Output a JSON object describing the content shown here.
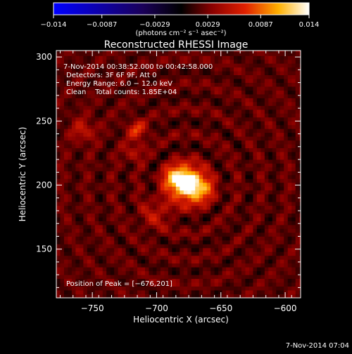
{
  "chart_data": {
    "type": "heatmap",
    "title": "Reconstructed RHESSI Image",
    "xlabel": "Heliocentric X (arcsec)",
    "ylabel": "Heliocentric Y (arcsec)",
    "xlim": [
      -778,
      -588
    ],
    "ylim": [
      112,
      305
    ],
    "xticks": [
      -750,
      -700,
      -650,
      -600
    ],
    "xtick_labels": [
      "−750",
      "−700",
      "−650",
      "−600"
    ],
    "yticks": [
      150,
      200,
      250,
      300
    ],
    "ytick_labels": [
      "150",
      "200",
      "250",
      "300"
    ],
    "colorbar": {
      "range": [
        -0.014,
        0.014
      ],
      "tick_values": [
        -0.014,
        -0.0087,
        -0.0029,
        0.0029,
        0.0087,
        0.014
      ],
      "tick_labels": [
        "−0.014",
        "−0.0087",
        "−0.0029",
        "0.0029",
        "0.0087",
        "0.014"
      ],
      "unit_label": "(photons cm⁻² s⁻¹ asec⁻²)"
    },
    "info_lines": [
      "7-Nov-2014 00:38:52.000 to 00:42:58.000",
      "Detectors: 3F 6F 9F, Att 0",
      "Energy Range: 6.0 − 12.0 keV",
      "Clean    Total counts: 1.85E+04"
    ],
    "peak_label": "Position of Peak = [−676,201]",
    "peak": [
      -676,
      201
    ],
    "sources": [
      {
        "x": -676,
        "y": 201,
        "sigma": 9,
        "amp": 0.014
      },
      {
        "x": -686,
        "y": 206,
        "sigma": 6,
        "amp": 0.006
      },
      {
        "x": -664,
        "y": 196,
        "sigma": 7,
        "amp": 0.004
      },
      {
        "x": -715,
        "y": 243,
        "sigma": 5,
        "amp": 0.005
      },
      {
        "x": -757,
        "y": 243,
        "sigma": 6,
        "amp": 0.0035
      },
      {
        "x": -718,
        "y": 226,
        "sigma": 5,
        "amp": 0.003
      },
      {
        "x": -700,
        "y": 178,
        "sigma": 8,
        "amp": 0.003
      }
    ],
    "background_level": 0.0022,
    "ripple_amplitude": 0.0018,
    "grid": false
  },
  "timestamp": "7-Nov-2014 07:04",
  "colors": {
    "background": "#000000",
    "foreground": "#ffffff",
    "colormap": [
      "#0000ff",
      "#000000",
      "#d01000",
      "#ffa000",
      "#ffffff"
    ]
  }
}
